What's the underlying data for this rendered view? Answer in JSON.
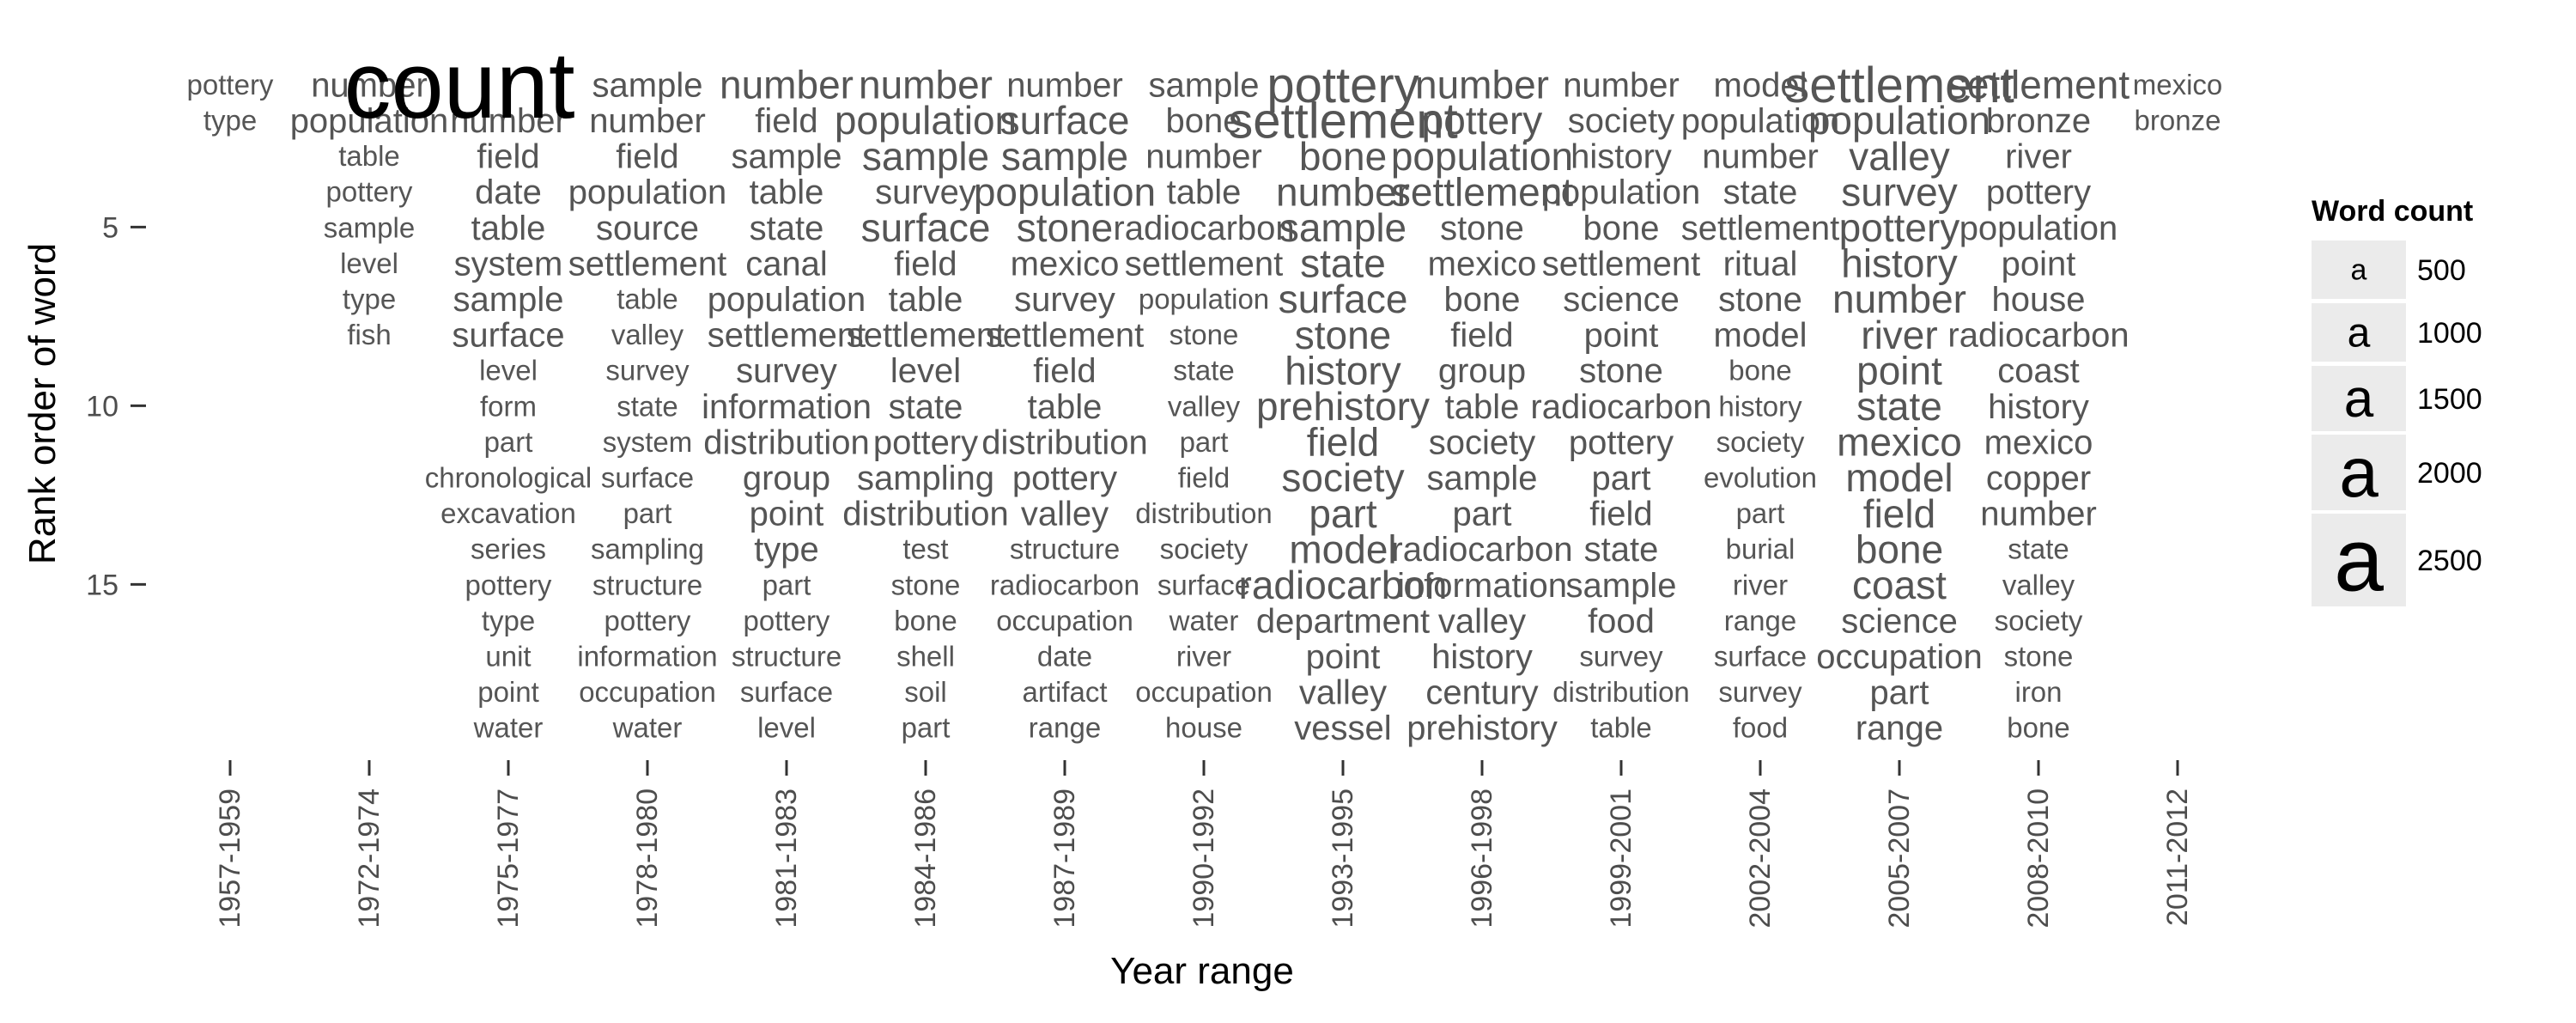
{
  "chart_data": {
    "type": "text-scatter",
    "top_label": "count",
    "xlabel": "Year range",
    "ylabel": "Rank order of word",
    "categories": [
      "1957-1959",
      "1972-1974",
      "1975-1977",
      "1978-1980",
      "1981-1983",
      "1984-1986",
      "1987-1989",
      "1990-1992",
      "1993-1995",
      "1996-1998",
      "1999-2001",
      "2002-2004",
      "2005-2007",
      "2008-2010",
      "2011-2012"
    ],
    "y_ticks": [
      5,
      10,
      15
    ],
    "ylim": [
      1,
      19
    ],
    "y_reversed": true,
    "grid": false,
    "legend": {
      "title": "Word count",
      "position": "right",
      "key_glyph": "a",
      "entries": [
        500,
        1000,
        1500,
        2000,
        2500
      ]
    },
    "columns": [
      {
        "period": "1957-1959",
        "words": [
          "pottery",
          "type"
        ],
        "size": [
          2,
          2
        ]
      },
      {
        "period": "1972-1974",
        "words": [
          "number",
          "population",
          "table",
          "pottery",
          "sample",
          "level",
          "type",
          "fish"
        ],
        "size": [
          3,
          3,
          2,
          2,
          2,
          2,
          2,
          2
        ]
      },
      {
        "period": "1975-1977",
        "words": [
          "count",
          "number",
          "field",
          "date",
          "table",
          "system",
          "sample",
          "surface",
          "level",
          "form",
          "part",
          "chronological",
          "excavation",
          "series",
          "pottery",
          "type",
          "unit",
          "point",
          "water"
        ],
        "size": [
          10,
          3,
          3,
          3,
          3,
          3,
          3,
          3,
          2,
          2,
          2,
          2,
          2,
          2,
          2,
          2,
          2,
          2,
          2
        ]
      },
      {
        "period": "1978-1980",
        "words": [
          "sample",
          "number",
          "field",
          "population",
          "source",
          "settlement",
          "table",
          "valley",
          "survey",
          "state",
          "system",
          "surface",
          "part",
          "sampling",
          "structure",
          "pottery",
          "information",
          "occupation",
          "water"
        ],
        "size": [
          3,
          3,
          3,
          3,
          3,
          3,
          2,
          2,
          2,
          2,
          2,
          2,
          2,
          2,
          2,
          2,
          2,
          2,
          2
        ]
      },
      {
        "period": "1981-1983",
        "words": [
          "number",
          "field",
          "sample",
          "table",
          "state",
          "canal",
          "population",
          "settlement",
          "survey",
          "information",
          "distribution",
          "group",
          "point",
          "type",
          "part",
          "pottery",
          "structure",
          "surface",
          "level"
        ],
        "size": [
          4,
          3,
          3,
          3,
          3,
          3,
          3,
          3,
          3,
          3,
          3,
          3,
          3,
          3,
          2,
          2,
          2,
          2,
          2
        ]
      },
      {
        "period": "1984-1986",
        "words": [
          "number",
          "population",
          "sample",
          "survey",
          "surface",
          "field",
          "table",
          "settlement",
          "level",
          "state",
          "pottery",
          "sampling",
          "distribution",
          "test",
          "stone",
          "bone",
          "shell",
          "soil",
          "part"
        ],
        "size": [
          4,
          4,
          4,
          3,
          4,
          3,
          3,
          3,
          3,
          3,
          3,
          3,
          3,
          2,
          2,
          2,
          2,
          2,
          2
        ]
      },
      {
        "period": "1987-1989",
        "words": [
          "number",
          "surface",
          "sample",
          "population",
          "stone",
          "mexico",
          "survey",
          "settlement",
          "field",
          "table",
          "distribution",
          "pottery",
          "valley",
          "structure",
          "radiocarbon",
          "occupation",
          "date",
          "artifact",
          "range"
        ],
        "size": [
          3,
          4,
          4,
          4,
          4,
          3,
          3,
          3,
          3,
          3,
          3,
          3,
          3,
          2,
          2,
          2,
          2,
          2,
          2
        ]
      },
      {
        "period": "1990-1992",
        "words": [
          "sample",
          "bone",
          "number",
          "table",
          "radiocarbon",
          "settlement",
          "population",
          "stone",
          "state",
          "valley",
          "part",
          "field",
          "distribution",
          "society",
          "surface",
          "water",
          "river",
          "occupation",
          "house"
        ],
        "size": [
          3,
          3,
          3,
          3,
          3,
          3,
          2,
          2,
          2,
          2,
          2,
          2,
          2,
          2,
          2,
          2,
          2,
          2,
          2
        ]
      },
      {
        "period": "1993-1995",
        "words": [
          "pottery",
          "settlement",
          "bone",
          "number",
          "sample",
          "state",
          "surface",
          "stone",
          "history",
          "prehistory",
          "field",
          "society",
          "part",
          "model",
          "radiocarbon",
          "department",
          "point",
          "valley",
          "vessel"
        ],
        "size": [
          5,
          5,
          4,
          4,
          4,
          4,
          4,
          4,
          4,
          4,
          4,
          4,
          4,
          4,
          4,
          3,
          3,
          3,
          3
        ]
      },
      {
        "period": "1996-1998",
        "words": [
          "number",
          "pottery",
          "population",
          "settlement",
          "stone",
          "mexico",
          "bone",
          "field",
          "group",
          "table",
          "society",
          "sample",
          "part",
          "radiocarbon",
          "information",
          "valley",
          "history",
          "century",
          "prehistory"
        ],
        "size": [
          4,
          4,
          4,
          4,
          3,
          3,
          3,
          3,
          3,
          3,
          3,
          3,
          3,
          3,
          3,
          3,
          3,
          3,
          3
        ]
      },
      {
        "period": "1999-2001",
        "words": [
          "number",
          "society",
          "history",
          "population",
          "bone",
          "settlement",
          "science",
          "point",
          "stone",
          "radiocarbon",
          "pottery",
          "part",
          "field",
          "state",
          "sample",
          "food",
          "survey",
          "distribution",
          "table"
        ],
        "size": [
          3,
          3,
          3,
          3,
          3,
          3,
          3,
          3,
          3,
          3,
          3,
          3,
          3,
          3,
          3,
          3,
          2,
          2,
          2
        ]
      },
      {
        "period": "2002-2004",
        "words": [
          "model",
          "population",
          "number",
          "state",
          "settlement",
          "ritual",
          "stone",
          "model",
          "bone",
          "history",
          "society",
          "evolution",
          "part",
          "burial",
          "river",
          "range",
          "surface",
          "survey",
          "food"
        ],
        "size": [
          3,
          3,
          3,
          3,
          3,
          3,
          3,
          3,
          2,
          2,
          2,
          2,
          2,
          2,
          2,
          2,
          2,
          2,
          2
        ]
      },
      {
        "period": "2005-2007",
        "words": [
          "settlement",
          "population",
          "valley",
          "survey",
          "pottery",
          "history",
          "number",
          "river",
          "point",
          "state",
          "mexico",
          "model",
          "field",
          "bone",
          "coast",
          "science",
          "occupation",
          "part",
          "range"
        ],
        "size": [
          5,
          4,
          4,
          4,
          4,
          4,
          4,
          4,
          4,
          4,
          4,
          4,
          4,
          4,
          4,
          3,
          3,
          3,
          3
        ]
      },
      {
        "period": "2008-2010",
        "words": [
          "settlement",
          "bronze",
          "river",
          "pottery",
          "population",
          "point",
          "house",
          "radiocarbon",
          "coast",
          "history",
          "mexico",
          "copper",
          "number",
          "state",
          "valley",
          "society",
          "stone",
          "iron",
          "bone"
        ],
        "size": [
          4,
          3,
          3,
          3,
          3,
          3,
          3,
          3,
          3,
          3,
          3,
          3,
          3,
          2,
          2,
          2,
          2,
          2,
          2
        ]
      },
      {
        "period": "2011-2012",
        "words": [
          "mexico",
          "bronze"
        ],
        "size": [
          2,
          2
        ]
      }
    ]
  }
}
